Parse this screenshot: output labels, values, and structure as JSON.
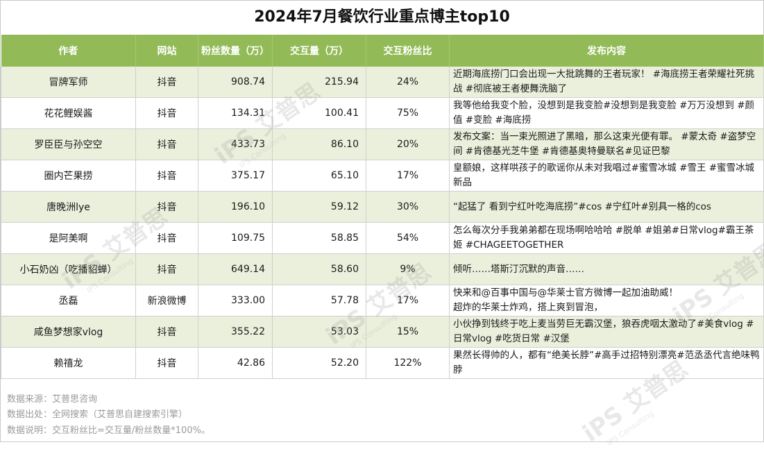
{
  "title": "2024年7月餐饮行业重点博主top10",
  "headers": {
    "author": "作者",
    "site": "网站",
    "fans": "粉丝数量（万）",
    "interact": "交互量（万）",
    "ratio": "交互粉丝比",
    "content": "发布内容"
  },
  "rows": [
    {
      "author": "冒牌军师",
      "site": "抖音",
      "fans": "908.74",
      "interact": "215.94",
      "ratio": "24%",
      "content": "近期海底捞门口会出现一大批跳舞的王者玩家！ #海底捞王者荣耀社死挑战 #彻底被王者梗舞洗脑了"
    },
    {
      "author": "花花鲤娱酱",
      "site": "抖音",
      "fans": "134.31",
      "interact": "100.41",
      "ratio": "75%",
      "content": "我等他给我变个脸，没想到是我变脸#没想到是我变脸 #万万没想到 #颜值 #变脸 #海底捞"
    },
    {
      "author": "罗臣臣与孙空空",
      "site": "抖音",
      "fans": "433.73",
      "interact": "86.10",
      "ratio": "20%",
      "content": "发布文案：当一束光照进了黑暗，那么这束光便有罪。 #蒙太奇 #盗梦空间 #肯德基光芝牛堡 #肯德基奥特曼联名#见证巴黎"
    },
    {
      "author": "圈内芒果捞",
      "site": "抖音",
      "fans": "375.17",
      "interact": "65.10",
      "ratio": "17%",
      "content": "皇额娘，这样哄孩子的歌谣你从未对我唱过#蜜雪冰城 #雪王 #蜜雪冰城新品"
    },
    {
      "author": "唐晚洲lye",
      "site": "抖音",
      "fans": "196.10",
      "interact": "59.12",
      "ratio": "30%",
      "content": "“起猛了 看到宁红叶吃海底捞”#cos #宁红叶#别具一格的cos"
    },
    {
      "author": "是阿美啊",
      "site": "抖音",
      "fans": "109.75",
      "interact": "58.85",
      "ratio": "54%",
      "content": "怎么每次分手我弟弟都在现场啊哈哈哈 #脱单 #姐弟#日常vlog#霸王茶姬 #CHAGEETOGETHER"
    },
    {
      "author": "小石奶凶（吃播貂蝉）",
      "site": "抖音",
      "fans": "649.14",
      "interact": "58.60",
      "ratio": "9%",
      "content": "倾听……塔斯汀沉默的声音……"
    },
    {
      "author": "丞磊",
      "site": "新浪微博",
      "fans": "333.00",
      "interact": "57.78",
      "ratio": "17%",
      "content": "快来和@百事中国与@华莱士官方微博一起加油助威！\n超炸的华莱士炸鸡，搭上爽到冒泡，"
    },
    {
      "author": "咸鱼梦想家vlog",
      "site": "抖音",
      "fans": "355.22",
      "interact": "53.03",
      "ratio": "15%",
      "content": "小伙挣到钱终于吃上麦当劳巨无霸汉堡，狼吞虎咽太激动了#美食vlog #日常vlog #吃货日常 #汉堡"
    },
    {
      "author": "赖禧龙",
      "site": "抖音",
      "fans": "42.86",
      "interact": "52.20",
      "ratio": "122%",
      "content": "果然长得帅的人，都有“绝美长脖”#高手过招特别漂亮#范丞丞代言绝味鸭脖"
    }
  ],
  "footer": {
    "source": "数据来源：艾普思咨询",
    "origin": "数据出处：全网搜索（艾普思自建搜索引擎）",
    "note": "数据说明：交互粉丝比=交互量/粉丝数量*100%。"
  },
  "watermark": {
    "brand": "艾普思",
    "sub": "IPS Consulting"
  }
}
